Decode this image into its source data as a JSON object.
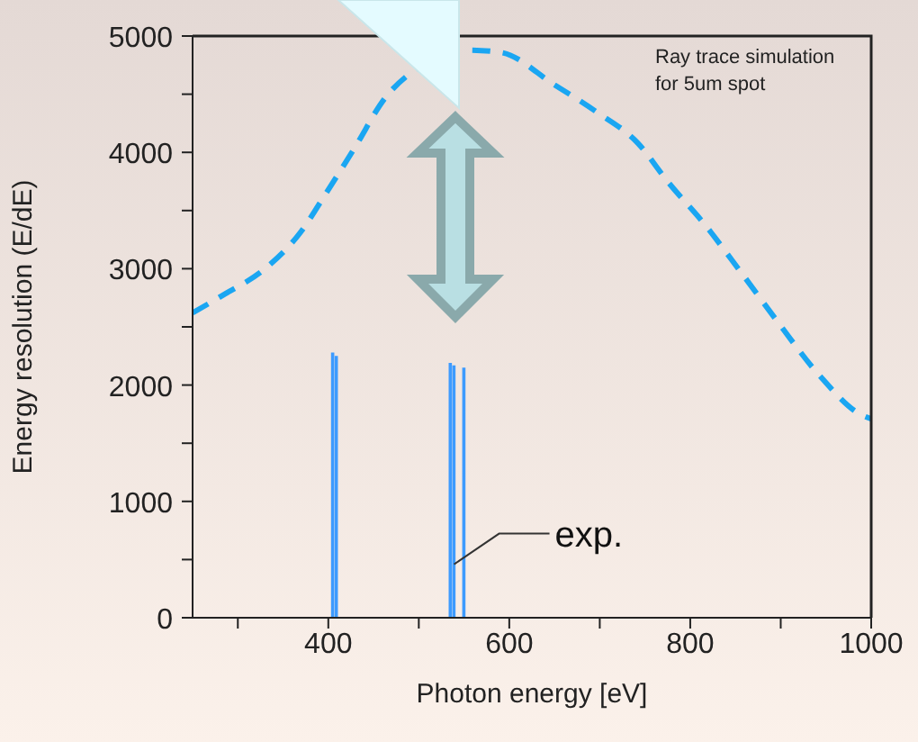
{
  "chart_data": {
    "type": "line",
    "xlabel": "Photon energy [eV]",
    "ylabel": "Energy resolution (E/dE)",
    "xlim": [
      250,
      1000
    ],
    "xticks": [
      {
        "value": 300,
        "label": null
      },
      400,
      {
        "value": 500,
        "label": null
      },
      600,
      {
        "value": 700,
        "label": null
      },
      800,
      {
        "value": 900,
        "label": null
      },
      1000
    ],
    "ylim": [
      0,
      5000
    ],
    "yticks": [
      0,
      {
        "value": 500,
        "label": null
      },
      1000,
      {
        "value": 1500,
        "label": null
      },
      2000,
      {
        "value": 2500,
        "label": null
      },
      3000,
      {
        "value": 3500,
        "label": null
      },
      4000,
      {
        "value": 4500,
        "label": null
      },
      5000
    ],
    "series": [
      {
        "color": "#1aa6f2",
        "line_style": "dashed",
        "x": [
          250,
          283,
          330,
          370,
          396,
          430,
          462,
          496,
          550,
          590,
          650,
          696,
          742,
          776,
          816,
          856,
          896,
          942,
          990,
          1000
        ],
        "values": [
          2620,
          2770,
          3000,
          3320,
          3630,
          4050,
          4460,
          4710,
          4880,
          4860,
          4580,
          4350,
          4080,
          3740,
          3380,
          2970,
          2550,
          2090,
          1740,
          1710
        ]
      },
      {
        "type": "bar",
        "color": "#3d9bff",
        "x": [
          405,
          409,
          535,
          539,
          550
        ],
        "values": [
          2280,
          2250,
          2190,
          2170,
          2150
        ]
      }
    ],
    "annotations": [
      "Ray trace simulation\nfor 5um spot",
      {
        "text": "exp.",
        "x": 539,
        "y": 460
      }
    ]
  }
}
